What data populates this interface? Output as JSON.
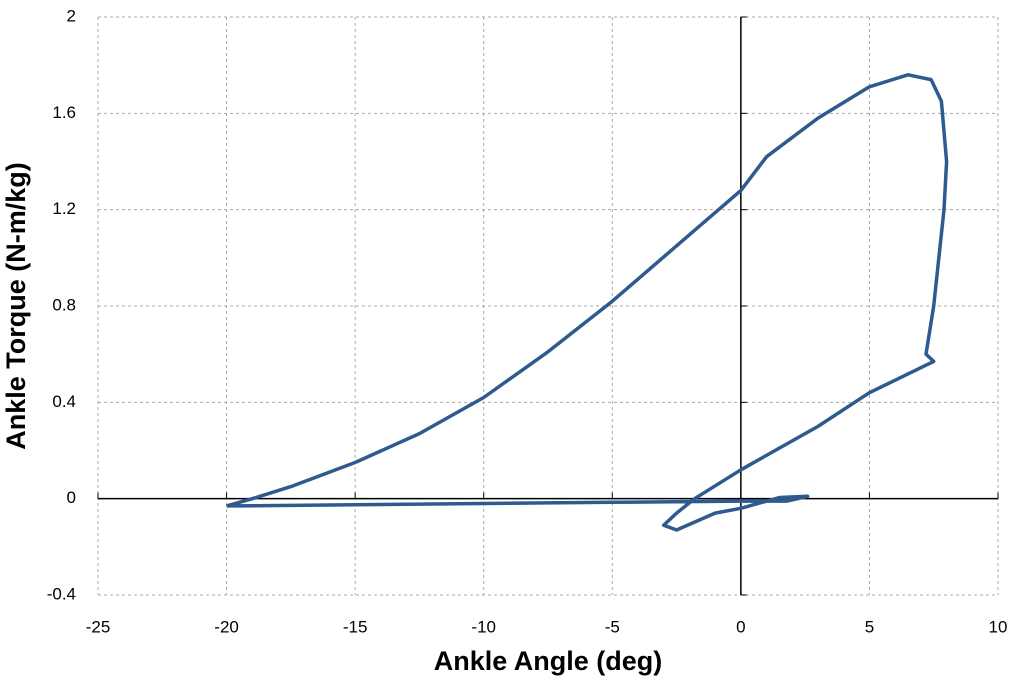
{
  "chart_data": {
    "type": "line",
    "x_label": "Ankle Angle (deg)",
    "y_label": "Ankle Torque (N-m/kg)",
    "x": [
      -20,
      -19.5,
      -15,
      -10,
      -5,
      0,
      1.8,
      2.6,
      1.5,
      0,
      -1,
      -2.5,
      -3,
      -2.5,
      -1.8,
      0,
      3,
      5,
      7.5,
      7.2,
      7.5,
      7.9,
      8.0,
      7.8,
      7.4,
      6.5,
      5,
      3,
      1,
      0,
      -2.5,
      -5,
      -7.5,
      -10,
      -12.5,
      -15,
      -17.5,
      -19,
      -20
    ],
    "values": [
      -0.03,
      -0.03,
      -0.025,
      -0.02,
      -0.015,
      -0.01,
      -0.01,
      0.01,
      0.005,
      -0.04,
      -0.06,
      -0.13,
      -0.11,
      -0.06,
      0,
      0.12,
      0.3,
      0.44,
      0.57,
      0.6,
      0.8,
      1.2,
      1.4,
      1.65,
      1.74,
      1.76,
      1.71,
      1.58,
      1.42,
      1.28,
      1.05,
      0.82,
      0.61,
      0.42,
      0.27,
      0.15,
      0.05,
      0,
      -0.03
    ],
    "color": "#2e5a8e",
    "xlim": [
      -25,
      10
    ],
    "ylim": [
      -0.4,
      2
    ],
    "xticks": [
      -25,
      -20,
      -15,
      -10,
      -5,
      0,
      5,
      10
    ],
    "yticks": [
      -0.4,
      0,
      0.4,
      0.8,
      1.2,
      1.6,
      2
    ],
    "grid": true
  }
}
